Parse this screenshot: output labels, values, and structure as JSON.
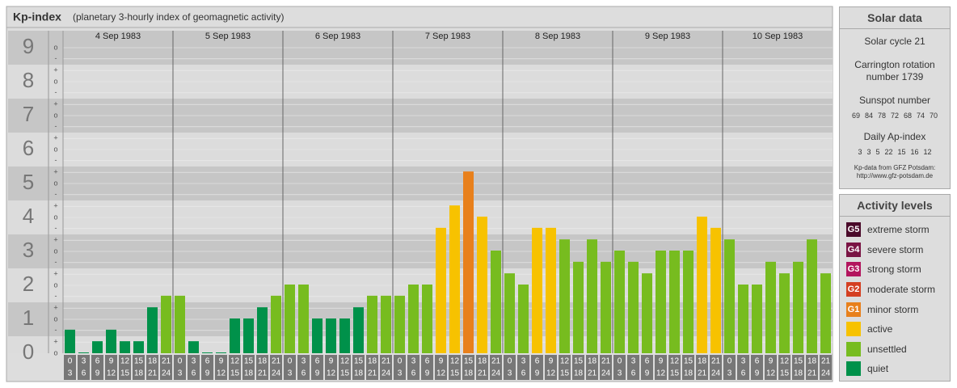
{
  "chart_data": {
    "type": "bar",
    "title": "Kp-index",
    "subtitle": "(planetary 3-hourly index of geomagnetic activity)",
    "days": [
      "4 Sep 1983",
      "5 Sep 1983",
      "6 Sep 1983",
      "7 Sep 1983",
      "8 Sep 1983",
      "9 Sep 1983",
      "10 Sep 1983"
    ],
    "hours": [
      [
        "0",
        "3"
      ],
      [
        "3",
        "6"
      ],
      [
        "6",
        "9"
      ],
      [
        "9",
        "12"
      ],
      [
        "12",
        "15"
      ],
      [
        "15",
        "18"
      ],
      [
        "18",
        "21"
      ],
      [
        "21",
        "24"
      ]
    ],
    "values": [
      0.67,
      0,
      0.33,
      0.67,
      0.33,
      0.33,
      1.33,
      1.67,
      1.67,
      0.33,
      0,
      0,
      1,
      1,
      1.33,
      1.67,
      2,
      2,
      1,
      1,
      1,
      1.33,
      1.67,
      1.67,
      1.67,
      2,
      2,
      3.67,
      4.33,
      5.33,
      4,
      3,
      2.33,
      2,
      3.67,
      3.67,
      3.33,
      2.67,
      3.33,
      2.67,
      3,
      2.67,
      2.33,
      3,
      3,
      3,
      4,
      3.67,
      3.33,
      2,
      2,
      2.67,
      2.33,
      2.67,
      3.33,
      2.33
    ],
    "colors": [
      "#00914a",
      "#00914a",
      "#00914a",
      "#00914a",
      "#00914a",
      "#00914a",
      "#00914a",
      "#77bc1f",
      "#77bc1f",
      "#00914a",
      "#00914a",
      "#00914a",
      "#00914a",
      "#00914a",
      "#00914a",
      "#77bc1f",
      "#77bc1f",
      "#77bc1f",
      "#00914a",
      "#00914a",
      "#00914a",
      "#00914a",
      "#77bc1f",
      "#77bc1f",
      "#77bc1f",
      "#77bc1f",
      "#77bc1f",
      "#f7c200",
      "#f7c200",
      "#e8801c",
      "#f7c200",
      "#77bc1f",
      "#77bc1f",
      "#77bc1f",
      "#f7c200",
      "#f7c200",
      "#77bc1f",
      "#77bc1f",
      "#77bc1f",
      "#77bc1f",
      "#77bc1f",
      "#77bc1f",
      "#77bc1f",
      "#77bc1f",
      "#77bc1f",
      "#77bc1f",
      "#f7c200",
      "#f7c200",
      "#77bc1f",
      "#77bc1f",
      "#77bc1f",
      "#77bc1f",
      "#77bc1f",
      "#77bc1f",
      "#77bc1f",
      "#77bc1f"
    ],
    "ylim": [
      0,
      9.5
    ],
    "yticks": [
      0,
      1,
      2,
      3,
      4,
      5,
      6,
      7,
      8,
      9
    ],
    "yticks_minor": [
      {
        "value": 0,
        "label": "o"
      },
      {
        "value": 0.33,
        "label": "+"
      },
      {
        "value": 0.67,
        "label": "-"
      },
      {
        "value": 1,
        "label": "o"
      },
      {
        "value": 1.33,
        "label": "+"
      },
      {
        "value": 1.67,
        "label": "-"
      },
      {
        "value": 2,
        "label": "o"
      },
      {
        "value": 2.33,
        "label": "+"
      },
      {
        "value": 2.67,
        "label": "-"
      },
      {
        "value": 3,
        "label": "o"
      },
      {
        "value": 3.33,
        "label": "+"
      },
      {
        "value": 3.67,
        "label": "-"
      },
      {
        "value": 4,
        "label": "o"
      },
      {
        "value": 4.33,
        "label": "+"
      },
      {
        "value": 4.67,
        "label": "-"
      },
      {
        "value": 5,
        "label": "o"
      },
      {
        "value": 5.33,
        "label": "+"
      },
      {
        "value": 5.67,
        "label": "-"
      },
      {
        "value": 6,
        "label": "o"
      },
      {
        "value": 6.33,
        "label": "+"
      },
      {
        "value": 6.67,
        "label": "-"
      },
      {
        "value": 7,
        "label": "o"
      },
      {
        "value": 7.33,
        "label": "+"
      },
      {
        "value": 7.67,
        "label": "-"
      },
      {
        "value": 8,
        "label": "o"
      },
      {
        "value": 8.33,
        "label": "+"
      },
      {
        "value": 8.67,
        "label": "-"
      },
      {
        "value": 9,
        "label": "o"
      }
    ]
  },
  "solar_data": {
    "title": "Solar data",
    "cycle": "Solar cycle 21",
    "carrington": "Carrington rotation number 1739",
    "sunspot_title": "Sunspot number",
    "sunspot": [
      69,
      84,
      78,
      72,
      68,
      74,
      70
    ],
    "ap_title": "Daily Ap-index",
    "ap": [
      3,
      3,
      5,
      22,
      15,
      16,
      12
    ],
    "source": "Kp-data from GFZ Potsdam:",
    "url": "http://www.gfz-potsdam.de"
  },
  "activity_levels": {
    "title": "Activity levels",
    "items": [
      {
        "code": "G5",
        "label": "extreme storm",
        "color": "#4a0a2a"
      },
      {
        "code": "G4",
        "label": "severe storm",
        "color": "#7a1444"
      },
      {
        "code": "G3",
        "label": "strong storm",
        "color": "#b3155e"
      },
      {
        "code": "G2",
        "label": "moderate storm",
        "color": "#d43f21"
      },
      {
        "code": "G1",
        "label": "minor storm",
        "color": "#e8801c"
      },
      {
        "label": "active",
        "color": "#f7c200"
      },
      {
        "label": "unsettled",
        "color": "#77bc1f"
      },
      {
        "label": "quiet",
        "color": "#00914a"
      }
    ]
  }
}
